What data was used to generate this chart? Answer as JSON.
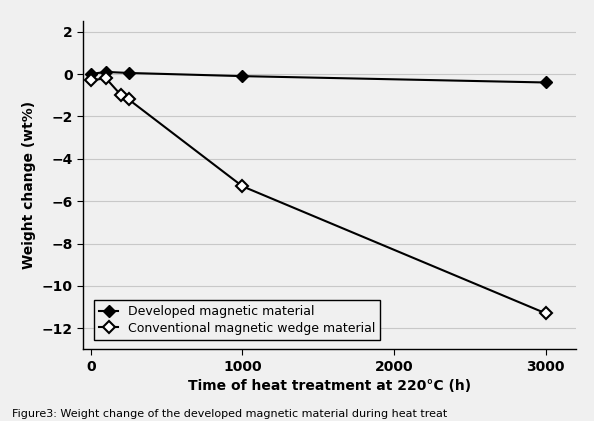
{
  "developed_x": [
    0,
    100,
    250,
    1000,
    3000
  ],
  "developed_y": [
    0.0,
    0.1,
    0.05,
    -0.1,
    -0.4
  ],
  "conventional_x": [
    0,
    100,
    200,
    250,
    1000,
    3000
  ],
  "conventional_y": [
    -0.3,
    -0.2,
    -1.0,
    -1.2,
    -5.3,
    -11.3
  ],
  "developed_label": "Developed magnetic material",
  "conventional_label": "Conventional magnetic wedge material",
  "xlabel": "Time of heat treatment at 220°C (h)",
  "ylabel": "Weight change (wt%)",
  "xlim": [
    -50,
    3200
  ],
  "ylim": [
    -13,
    2.5
  ],
  "xticks": [
    0,
    1000,
    2000,
    3000
  ],
  "yticks": [
    2,
    0,
    -2,
    -4,
    -6,
    -8,
    -10,
    -12
  ],
  "caption": "Figure3: Weight change of the developed magnetic material during heat treat",
  "background_color": "#f0f0f0",
  "plot_bg_color": "#f0f0f0",
  "line_color": "#000000",
  "grid_color": "#c8c8c8",
  "legend_fontsize": 9,
  "axis_fontsize": 10,
  "tick_fontsize": 10,
  "caption_fontsize": 8
}
